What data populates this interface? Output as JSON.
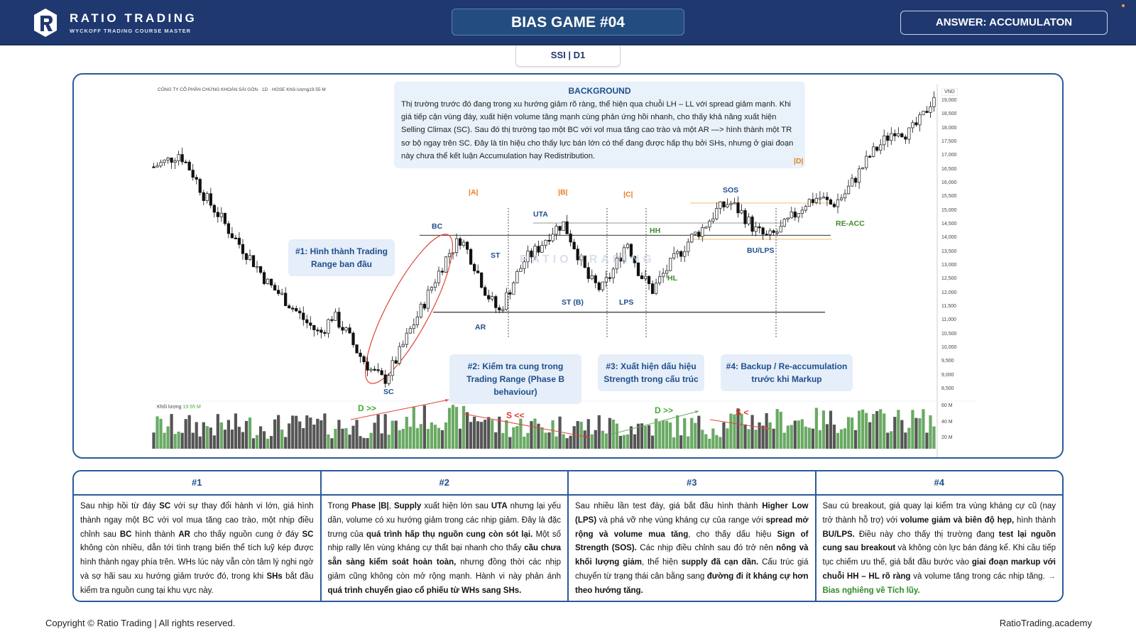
{
  "header": {
    "brand_name": "RATIO TRADING",
    "brand_subtitle": "WYCKOFF TRADING COURSE MASTER",
    "game_title": "BIAS GAME #04",
    "answer_label": "ANSWER: ACCUMULATON"
  },
  "ticker_tab": "SSI | D1",
  "chart": {
    "stock_title": "CÔNG TY CỔ PHẦN CHỨNG KHOÁN SÀI GÒN · 1D · HOSE  Khối lượng19.55 M",
    "volume_title": "Khối lượng",
    "volume_value": "19.55 M",
    "currency": "VND",
    "watermark": "RATIO TRADING",
    "background": {
      "title": "BACKGROUND",
      "text": "Thị trường trước đó đang trong xu hướng giảm rõ ràng, thể hiện qua chuỗi LH – LL với spread giảm mạnh. Khi giá tiếp cận vùng đáy, xuất hiện volume tăng mạnh cùng phản ứng hồi nhanh, cho thấy khả năng xuất hiện Selling Climax (SC). Sau đó thị trường tạo một BC với vol mua tăng cao trào và một AR —> hình thành một TR sơ bộ ngay trên SC. Đây là tín hiệu cho thấy lực bán lớn có thể đang được hấp thụ bởi SHs, nhưng ở giai đoạn này chưa thể kết luận Accumulation hay Redistribution."
    },
    "notes": [
      "#1: Hình thành Trading Range ban đầu",
      "#2: Kiểm tra cung trong Trading Range (Phase B behaviour)",
      "#3: Xuất hiện dấu hiệu Strength trong cấu trúc",
      "#4: Backup / Re-accumulation trước khi Markup"
    ],
    "phase_labels": [
      "|A|",
      "|B|",
      "|C|",
      "|D|"
    ],
    "event_labels": {
      "sc": "SC",
      "bc": "BC",
      "ar": "AR",
      "st": "ST",
      "uta": "UTA",
      "st_b": "ST (B)",
      "lps": "LPS",
      "hh": "HH",
      "hl": "HL",
      "sos": "SOS",
      "bu_lps": "BU/LPS",
      "re_acc": "RE-ACC"
    },
    "volume_annotations": [
      "D >>",
      "S <<",
      "D >>",
      "S <"
    ],
    "colors": {
      "up": "#ffffff",
      "down": "#111111",
      "vol_up": "#6aaa64",
      "vol_down": "#555555",
      "range_line": "#333333",
      "sos_line": "#f5c98a",
      "ellipse": "#e0463a"
    }
  },
  "chart_data": {
    "type": "candlestick",
    "title": "CÔNG TY CỔ PHẦN CHỨNG KHOÁN SÀI GÒN · 1D · HOSE",
    "ylabel": "VND",
    "y_ticks": [
      19000,
      18500,
      18000,
      17500,
      17000,
      16500,
      16000,
      15500,
      15000,
      14500,
      14000,
      13500,
      13000,
      12500,
      12000,
      11500,
      11000,
      10500,
      10000,
      9500,
      9000,
      8500
    ],
    "ylim": [
      8300,
      19500
    ],
    "volume_ticks": [
      "60 M",
      "40 M",
      "20 M"
    ],
    "trading_range": {
      "resistance": 14000,
      "support": 11300,
      "uta_high": 14550
    },
    "key_points": [
      {
        "label": "SC",
        "price": 8800
      },
      {
        "label": "BC",
        "price": 14000
      },
      {
        "label": "AR",
        "price": 11300
      },
      {
        "label": "UTA",
        "price": 14550
      },
      {
        "label": "ST (B)",
        "price": 12100
      },
      {
        "label": "LPS",
        "price": 12100
      },
      {
        "label": "SOS",
        "price": 15300
      },
      {
        "label": "BU/LPS",
        "price": 14000
      },
      {
        "label": "last close",
        "price": 19200
      }
    ],
    "price_path_approx": [
      16600,
      16800,
      17100,
      16400,
      15500,
      14900,
      14200,
      13600,
      13000,
      12300,
      11900,
      11400,
      10900,
      10500,
      11200,
      10600,
      9800,
      9200,
      8800,
      9600,
      10600,
      11500,
      12500,
      13400,
      14000,
      13100,
      12000,
      11300,
      12300,
      13200,
      13600,
      14200,
      14550,
      13600,
      12500,
      12100,
      12900,
      13900,
      12700,
      12100,
      12800,
      13400,
      14000,
      14400,
      15000,
      15300,
      14900,
      14300,
      14000,
      14300,
      14800,
      15300,
      15500,
      15200,
      15600,
      16300,
      17000,
      17500,
      18000,
      17800,
      18300,
      19200
    ],
    "legend": [],
    "grid": false
  },
  "table": {
    "columns": [
      {
        "title": "#1",
        "html": "Sau nhịp hồi từ đáy <b>SC</b> với sự thay đổi hành vi lớn, giá hình thành ngay một BC với vol mua tăng cao trào, một nhịp điều chỉnh sau <b>BC</b> hình thành <b>AR</b> cho thấy nguồn cung ở đáy <b>SC</b> không còn nhiều, dẫn tới tình trạng biến thể tích luỹ kép được hình thành ngay phía trên. WHs lúc này vẫn còn tâm lý nghi ngờ và sợ hãi sau xu hướng giảm trước đó, trong khi <b>SHs</b> bắt đầu kiểm tra nguồn cung tại khu vực này."
      },
      {
        "title": "#2",
        "html": "Trong <b>Phase |B|</b>, <b>Supply</b> xuất hiện lớn sau <b>UTA</b> nhưng lại yếu dần, volume có xu hướng giảm trong các nhịp giảm. Đây là đặc trưng của <b>quá trình hấp thụ nguồn cung còn sót lại.</b> Một số nhịp rally lên vùng kháng cự thất bại nhanh cho thấy <b>cầu chưa sẵn sàng kiểm soát hoàn toàn,</b> nhưng đồng thời các nhịp giảm cũng không còn mở rộng mạnh. Hành vi này phản ánh <b>quá trình chuyển giao cổ phiếu từ WHs sang SHs.</b>"
      },
      {
        "title": "#3",
        "html": "Sau nhiều lần test đáy, giá bắt đầu hình thành <b>Higher Low (LPS)</b> và phá vỡ nhẹ vùng kháng cự của range với <b>spread mở rộng và volume mua tăng</b>, cho thấy dấu hiệu <b>Sign of Strength (SOS).</b> Các nhịp điều chỉnh sau đó trở nên <b>nông và khối lượng giảm</b>, thể hiện <b>supply đã cạn dần.</b> Cấu trúc giá chuyển từ trạng thái cân bằng sang <b>đường đi ít kháng cự hơn theo hướng tăng.</b>"
      },
      {
        "title": "#4",
        "html": "Sau cú breakout, giá quay lại kiểm tra vùng kháng cự cũ (nay trở thành hỗ trợ) với <b>volume giảm và biên độ hẹp,</b> hình thành <b>BU/LPS.</b> Điều này cho thấy thị trường đang <b>test lại nguồn cung sau breakout</b> và không còn lực bán đáng kể. Khi cầu tiếp tục chiếm ưu thế, giá bắt đầu bước vào <b>giai đoạn markup với chuỗi HH – HL rõ ràng</b> và volume tăng trong các nhịp tăng. <span class=\"g\">→ Bias nghiêng về Tích lũy.</span>"
      }
    ]
  },
  "footer": {
    "copyright": "Copyright © Ratio Trading | All rights reserved.",
    "site": "RatioTrading.academy"
  }
}
